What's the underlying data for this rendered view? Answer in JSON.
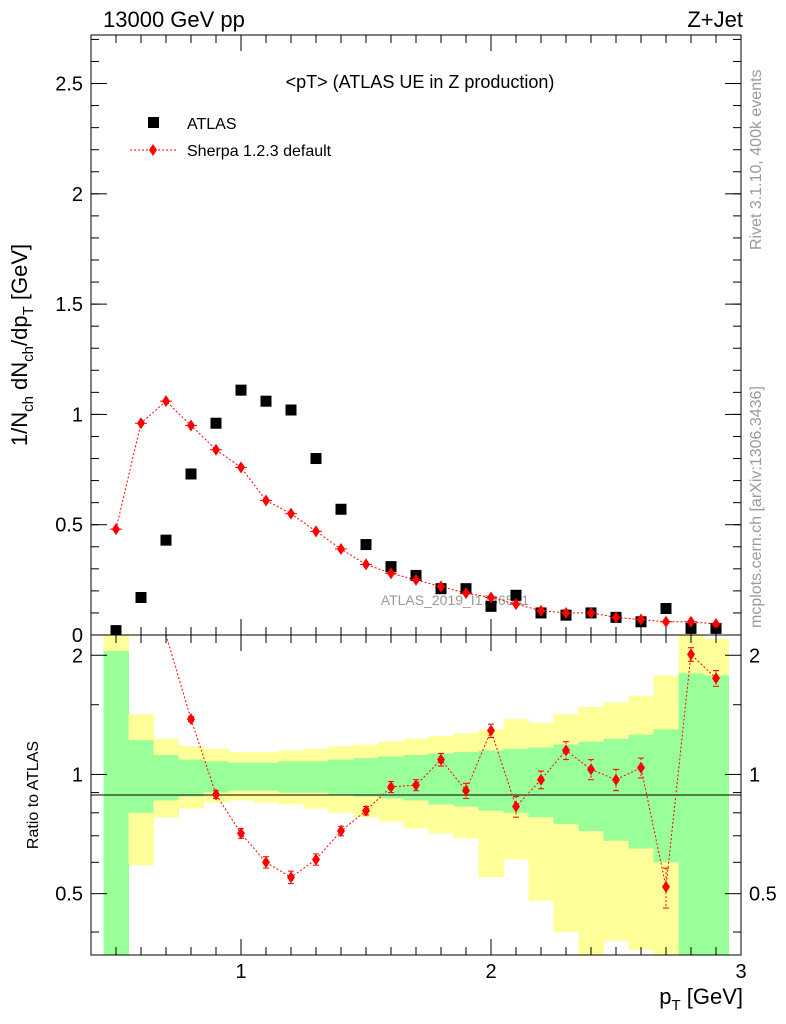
{
  "header": {
    "left": "13000 GeV pp",
    "right": "Z+Jet"
  },
  "side_labels": {
    "rivet": "Rivet 3.1.10,  400k events",
    "mcplots": "mcplots.cern.ch [arXiv:1306.3436]"
  },
  "colors": {
    "data": "#000000",
    "mc": "#ff0000",
    "band_inner": "#99ff99",
    "band_outer": "#ffff99"
  },
  "chart_data": [
    {
      "type": "scatter",
      "title": "<pT> (ATLAS UE in Z production)",
      "watermark": "ATLAS_2019_I1736531",
      "ylabel": "1/N_ch dN_ch/dp_T [GeV]",
      "xlim": [
        0.4,
        3.0
      ],
      "ylim": [
        0,
        2.72
      ],
      "yticks": [
        0,
        0.5,
        1,
        1.5,
        2,
        2.5
      ],
      "ytick_labels": [
        "0",
        "0.5",
        "1",
        "1.5",
        "2",
        "2.5"
      ],
      "legend": "top-left",
      "series": [
        {
          "name": "ATLAS",
          "marker": "square",
          "x": [
            0.5,
            0.6,
            0.7,
            0.8,
            0.9,
            1.0,
            1.1,
            1.2,
            1.3,
            1.4,
            1.5,
            1.6,
            1.7,
            1.8,
            1.9,
            2.0,
            2.1,
            2.2,
            2.3,
            2.4,
            2.5,
            2.6,
            2.7,
            2.8,
            2.9
          ],
          "y": [
            0.02,
            0.17,
            0.43,
            0.73,
            0.96,
            1.11,
            1.06,
            1.02,
            0.8,
            0.57,
            0.41,
            0.31,
            0.27,
            0.21,
            0.21,
            0.13,
            0.18,
            0.1,
            0.09,
            0.1,
            0.08,
            0.06,
            0.12,
            0.03,
            0.03
          ]
        },
        {
          "name": "Sherpa 1.2.3 default",
          "marker": "diamond",
          "x": [
            0.5,
            0.6,
            0.7,
            0.8,
            0.9,
            1.0,
            1.1,
            1.2,
            1.3,
            1.4,
            1.5,
            1.6,
            1.7,
            1.8,
            1.9,
            2.0,
            2.1,
            2.2,
            2.3,
            2.4,
            2.5,
            2.6,
            2.7,
            2.8,
            2.9
          ],
          "y": [
            0.48,
            0.96,
            1.06,
            0.95,
            0.84,
            0.76,
            0.61,
            0.55,
            0.47,
            0.39,
            0.32,
            0.28,
            0.25,
            0.22,
            0.19,
            0.17,
            0.14,
            0.11,
            0.1,
            0.1,
            0.08,
            0.07,
            0.06,
            0.06,
            0.05
          ]
        }
      ]
    },
    {
      "type": "line",
      "ylabel": "Ratio to ATLAS",
      "xlabel": "p_T [GeV]",
      "xlim": [
        0.4,
        3.0
      ],
      "ylim": [
        0.35,
        2.25
      ],
      "xticks": [
        1,
        2,
        3
      ],
      "xtick_labels": [
        "1",
        "2",
        "3"
      ],
      "yticks": [
        0.5,
        1,
        2
      ],
      "ytick_labels": [
        "0.5",
        "1",
        "2"
      ],
      "bin_edges": [
        0.45,
        0.55,
        0.65,
        0.75,
        0.85,
        0.95,
        1.05,
        1.15,
        1.25,
        1.35,
        1.45,
        1.55,
        1.65,
        1.75,
        1.85,
        1.95,
        2.05,
        2.15,
        2.25,
        2.35,
        2.45,
        2.55,
        2.65,
        2.75,
        2.85,
        2.95
      ],
      "band_inner_lo": [
        0.35,
        0.8,
        0.86,
        0.88,
        0.9,
        0.91,
        0.91,
        0.9,
        0.9,
        0.89,
        0.88,
        0.87,
        0.86,
        0.84,
        0.83,
        0.81,
        0.8,
        0.78,
        0.75,
        0.72,
        0.68,
        0.65,
        0.6,
        0.35,
        0.35
      ],
      "band_inner_hi": [
        2.05,
        1.22,
        1.12,
        1.09,
        1.08,
        1.07,
        1.07,
        1.08,
        1.08,
        1.09,
        1.1,
        1.11,
        1.12,
        1.13,
        1.14,
        1.15,
        1.16,
        1.17,
        1.19,
        1.21,
        1.23,
        1.26,
        1.3,
        1.8,
        1.78
      ],
      "band_outer_lo": [
        0.35,
        0.59,
        0.78,
        0.82,
        0.85,
        0.86,
        0.85,
        0.84,
        0.82,
        0.8,
        0.78,
        0.76,
        0.73,
        0.71,
        0.69,
        0.55,
        0.61,
        0.48,
        0.4,
        0.35,
        0.38,
        0.36,
        0.35,
        0.35,
        0.35
      ],
      "band_outer_hi": [
        2.25,
        1.42,
        1.23,
        1.18,
        1.16,
        1.14,
        1.14,
        1.15,
        1.16,
        1.18,
        1.19,
        1.21,
        1.23,
        1.25,
        1.27,
        1.3,
        1.38,
        1.35,
        1.42,
        1.48,
        1.52,
        1.58,
        1.78,
        2.25,
        2.2
      ],
      "series": [
        {
          "name": "Sherpa 1.2.3 default",
          "x": [
            0.7,
            0.8,
            0.9,
            1.0,
            1.1,
            1.2,
            1.3,
            1.4,
            1.5,
            1.6,
            1.7,
            1.8,
            1.9,
            2.0,
            2.1,
            2.2,
            2.3,
            2.4,
            2.5,
            2.6,
            2.7,
            2.8,
            2.9
          ],
          "y": [
            2.25,
            1.38,
            0.89,
            0.71,
            0.6,
            0.55,
            0.61,
            0.72,
            0.81,
            0.93,
            0.94,
            1.09,
            0.91,
            1.29,
            0.83,
            0.97,
            1.15,
            1.03,
            0.97,
            1.04,
            0.52,
            2.01,
            1.75
          ],
          "yerr": [
            0,
            0.02,
            0.02,
            0.02,
            0.02,
            0.02,
            0.02,
            0.02,
            0.02,
            0.03,
            0.03,
            0.04,
            0.04,
            0.05,
            0.05,
            0.05,
            0.06,
            0.06,
            0.06,
            0.06,
            0.06,
            0.08,
            0.08
          ]
        }
      ]
    }
  ]
}
